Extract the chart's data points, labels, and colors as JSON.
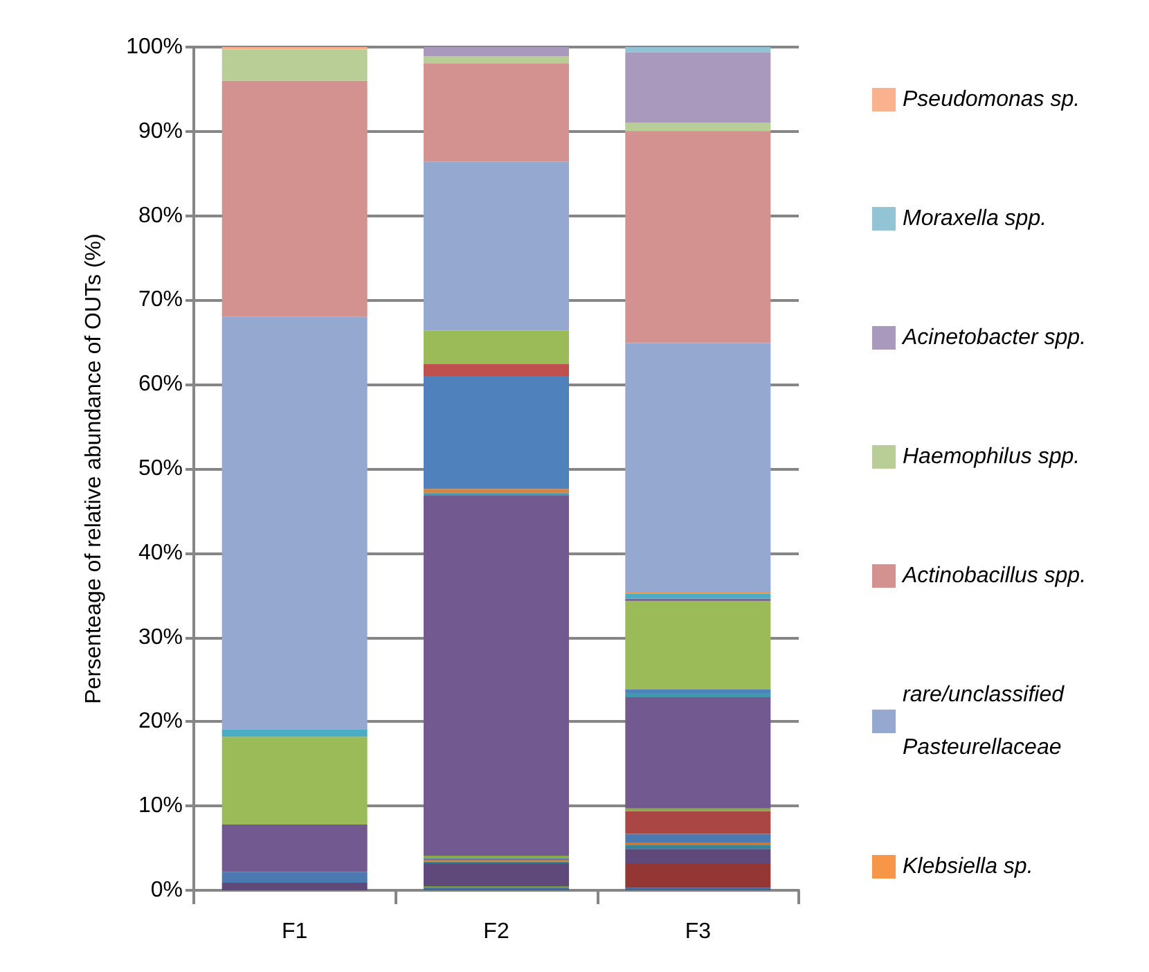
{
  "chart_data": {
    "type": "bar",
    "stacked": true,
    "ylabel": "Persenteage of relative abundance of OUTs (%)",
    "categories": [
      "F1",
      "F2",
      "F3"
    ],
    "ylim": [
      0,
      100
    ],
    "yticks": [
      {
        "value": 0,
        "label": "0%"
      },
      {
        "value": 10,
        "label": "10%"
      },
      {
        "value": 20,
        "label": "20%"
      },
      {
        "value": 30,
        "label": "30%"
      },
      {
        "value": 40,
        "label": "40%"
      },
      {
        "value": 50,
        "label": "50%"
      },
      {
        "value": 60,
        "label": "60%"
      },
      {
        "value": 70,
        "label": "70%"
      },
      {
        "value": 80,
        "label": "80%"
      },
      {
        "value": 90,
        "label": "90%"
      },
      {
        "value": 100,
        "label": "100%"
      }
    ],
    "grid": "y",
    "legend": "right",
    "series": [
      {
        "color": "#3a6aa0",
        "values": [
          0,
          0.3,
          0.3
        ]
      },
      {
        "color": "#77933c",
        "values": [
          0,
          0.2,
          0
        ]
      },
      {
        "color": "#943634",
        "values": [
          0,
          0,
          2.9
        ]
      },
      {
        "color": "#5f497a",
        "values": [
          0.9,
          2.7,
          1.7
        ]
      },
      {
        "color": "#31859c",
        "values": [
          0,
          0.2,
          0.5
        ]
      },
      {
        "color": "#e46c0a",
        "values": [
          0,
          0.2,
          0.2
        ]
      },
      {
        "color": "#4a7ab0",
        "values": [
          1.3,
          0.2,
          1.1
        ]
      },
      {
        "color": "#aa4643",
        "values": [
          0,
          0,
          2.7
        ]
      },
      {
        "color": "#89a54e",
        "values": [
          0,
          0.3,
          0.3
        ]
      },
      {
        "color": "#725990",
        "values": [
          5.6,
          42.7,
          13.2
        ]
      },
      {
        "color": "#4198af",
        "values": [
          0,
          0.3,
          0.5
        ]
      },
      {
        "color": "#db843d",
        "values": [
          0,
          0.5,
          0
        ]
      },
      {
        "color": "#4f81bd",
        "values": [
          0,
          13.4,
          0.4
        ]
      },
      {
        "color": "#c0504d",
        "values": [
          0,
          1.4,
          0
        ]
      },
      {
        "color": "#9bbb59",
        "values": [
          10.4,
          4.0,
          10.5
        ]
      },
      {
        "color": "#8064a2",
        "values": [
          0,
          0,
          0.3
        ]
      },
      {
        "color": "#4bacc6",
        "values": [
          0.9,
          0,
          0.6
        ]
      },
      {
        "name": "Klebsiella sp.",
        "color": "#f79646",
        "values": [
          0,
          0,
          0.1
        ]
      },
      {
        "name": "rare/unclassified Pasteurellaceae",
        "color": "#95a9d0",
        "values": [
          48.9,
          20.0,
          29.6
        ]
      },
      {
        "name": "Actinobacillus spp.",
        "color": "#d39290",
        "values": [
          28.0,
          11.7,
          25.1
        ]
      },
      {
        "name": "Haemophilus spp.",
        "color": "#b9cd96",
        "values": [
          3.7,
          0.8,
          1.0
        ]
      },
      {
        "name": "Acinetobacter spp.",
        "color": "#a99abd",
        "values": [
          0,
          1.1,
          8.4
        ]
      },
      {
        "name": "Moraxella spp.",
        "color": "#92c4d5",
        "values": [
          0,
          0,
          0.6
        ]
      },
      {
        "name": "Pseudomonas sp.",
        "color": "#f9b28d",
        "values": [
          0.3,
          0,
          0
        ]
      }
    ]
  }
}
